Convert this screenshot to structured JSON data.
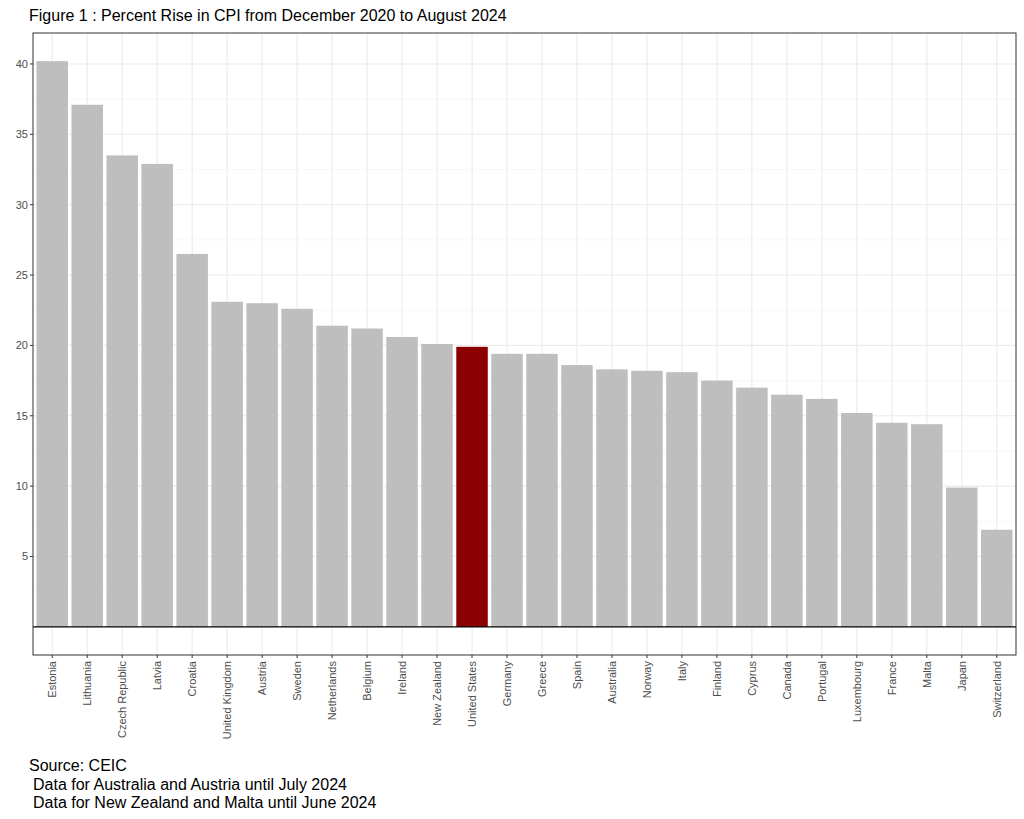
{
  "chart_data": {
    "type": "bar",
    "title": "Figure 1 : Percent Rise in CPI from December 2020 to August 2024",
    "categories": [
      "Estonia",
      "Lithuania",
      "Czech Republic",
      "Latvia",
      "Croatia",
      "United Kingdom",
      "Austria",
      "Sweden",
      "Netherlands",
      "Belgium",
      "Ireland",
      "New Zealand",
      "United States",
      "Germany",
      "Greece",
      "Spain",
      "Australia",
      "Norway",
      "Italy",
      "Finland",
      "Cyprus",
      "Canada",
      "Portugal",
      "Luxembourg",
      "France",
      "Malta",
      "Japan",
      "Switzerland"
    ],
    "values": [
      40.2,
      37.1,
      33.5,
      32.9,
      26.5,
      23.1,
      23.0,
      22.6,
      21.4,
      21.2,
      20.6,
      20.1,
      19.9,
      19.4,
      19.4,
      18.6,
      18.3,
      18.2,
      18.1,
      17.5,
      17.0,
      16.5,
      16.2,
      15.2,
      14.5,
      14.4,
      9.9,
      6.9
    ],
    "colors": [
      "#bebebe",
      "#bebebe",
      "#bebebe",
      "#bebebe",
      "#bebebe",
      "#bebebe",
      "#bebebe",
      "#bebebe",
      "#bebebe",
      "#bebebe",
      "#bebebe",
      "#bebebe",
      "#8b0000",
      "#bebebe",
      "#bebebe",
      "#bebebe",
      "#bebebe",
      "#bebebe",
      "#bebebe",
      "#bebebe",
      "#bebebe",
      "#bebebe",
      "#bebebe",
      "#bebebe",
      "#bebebe",
      "#bebebe",
      "#bebebe",
      "#bebebe"
    ],
    "ylim": [
      -2,
      42.2
    ],
    "yticks": [
      5,
      10,
      15,
      20,
      25,
      30,
      35,
      40
    ],
    "grid": true,
    "annotations": [
      "Source: CEIC",
      "Data for Australia and Austria until July 2024",
      "Data for New Zealand and Malta until June 2024"
    ]
  }
}
